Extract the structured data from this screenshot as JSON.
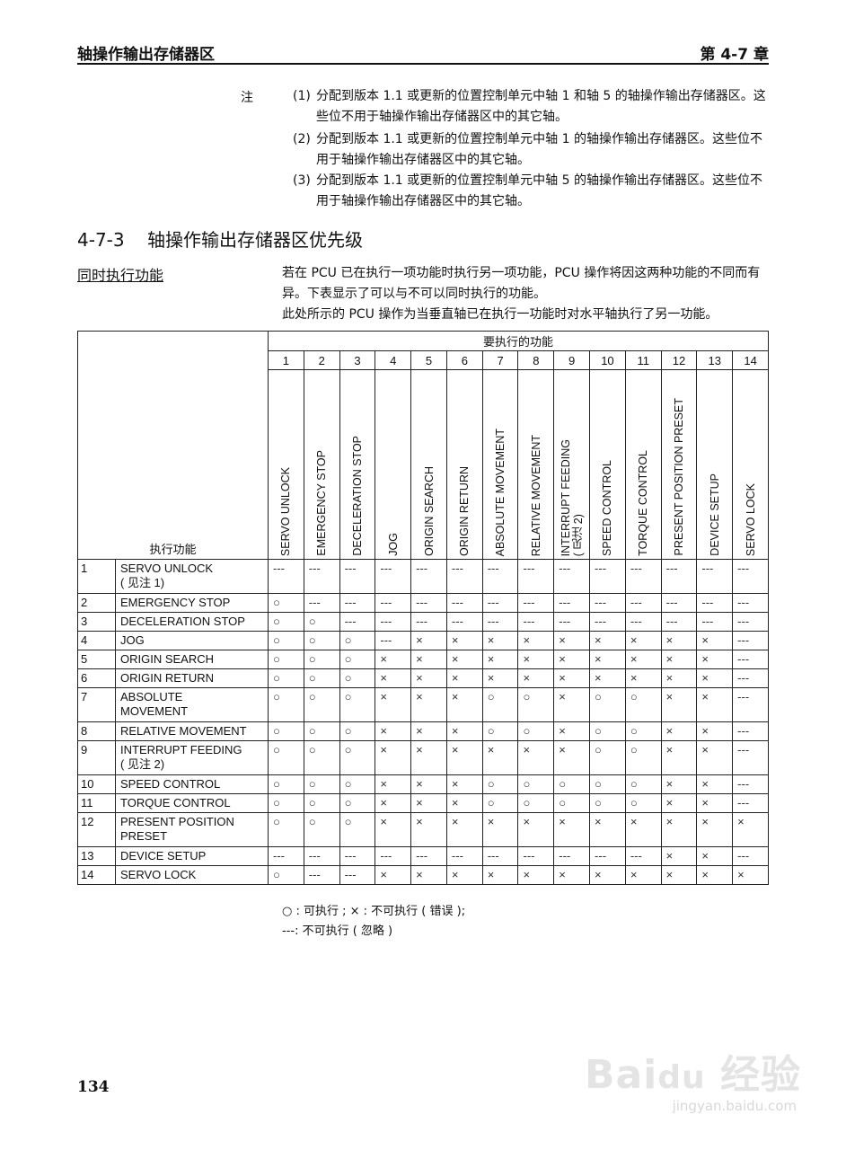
{
  "header": {
    "left": "轴操作输出存储器区",
    "right": "第 4-7 章"
  },
  "notes": {
    "label": "注",
    "items": [
      {
        "num": "(1)",
        "text": "分配到版本 1.1 或更新的位置控制单元中轴 1 和轴 5 的轴操作输出存储器区。这些位不用于轴操作输出存储器区中的其它轴。"
      },
      {
        "num": "(2)",
        "text": "分配到版本 1.1 或更新的位置控制单元中轴 1 的轴操作输出存储器区。这些位不用于轴操作输出存储器区中的其它轴。"
      },
      {
        "num": "(3)",
        "text": "分配到版本 1.1 或更新的位置控制单元中轴 5 的轴操作输出存储器区。这些位不用于轴操作输出存储器区中的其它轴。"
      }
    ]
  },
  "section": {
    "number": "4-7-3",
    "title": "轴操作输出存储器区优先级"
  },
  "subsection": {
    "title": "同时执行功能",
    "paragraphs": [
      "若在 PCU 已在执行一项功能时执行另一项功能，PCU 操作将因这两种功能的不同而有异。下表显示了可以与不可以同时执行的功能。",
      "此处所示的 PCU 操作为当垂直轴已在执行一功能时对水平轴执行了另一功能。"
    ]
  },
  "table": {
    "top_header": "要执行的功能",
    "corner_label": "执行功能",
    "columns": [
      {
        "num": "1",
        "label": "SERVO UNLOCK"
      },
      {
        "num": "2",
        "label": "EMERGENCY STOP"
      },
      {
        "num": "3",
        "label": "DECELERATION STOP"
      },
      {
        "num": "4",
        "label": "JOG"
      },
      {
        "num": "5",
        "label": "ORIGIN SEARCH"
      },
      {
        "num": "6",
        "label": "ORIGIN RETURN"
      },
      {
        "num": "7",
        "label": "ABSOLUTE MOVEMENT"
      },
      {
        "num": "8",
        "label": "RELATIVE MOVEMENT"
      },
      {
        "num": "9",
        "label": "INTERRUPT FEEDING\n( 见注 2)"
      },
      {
        "num": "10",
        "label": "SPEED CONTROL"
      },
      {
        "num": "11",
        "label": "TORQUE CONTROL"
      },
      {
        "num": "12",
        "label": "PRESENT POSITION PRESET"
      },
      {
        "num": "13",
        "label": "DEVICE SETUP"
      },
      {
        "num": "14",
        "label": "SERVO LOCK"
      }
    ],
    "rows": [
      {
        "num": "1",
        "name": "SERVO UNLOCK\n( 见注 1)",
        "cells": [
          "---",
          "---",
          "---",
          "---",
          "---",
          "---",
          "---",
          "---",
          "---",
          "---",
          "---",
          "---",
          "---",
          "---"
        ]
      },
      {
        "num": "2",
        "name": "EMERGENCY STOP",
        "cells": [
          "○",
          "---",
          "---",
          "---",
          "---",
          "---",
          "---",
          "---",
          "---",
          "---",
          "---",
          "---",
          "---",
          "---"
        ]
      },
      {
        "num": "3",
        "name": "DECELERATION STOP",
        "cells": [
          "○",
          "○",
          "---",
          "---",
          "---",
          "---",
          "---",
          "---",
          "---",
          "---",
          "---",
          "---",
          "---",
          "---"
        ]
      },
      {
        "num": "4",
        "name": "JOG",
        "cells": [
          "○",
          "○",
          "○",
          "---",
          "×",
          "×",
          "×",
          "×",
          "×",
          "×",
          "×",
          "×",
          "×",
          "---"
        ]
      },
      {
        "num": "5",
        "name": "ORIGIN SEARCH",
        "cells": [
          "○",
          "○",
          "○",
          "×",
          "×",
          "×",
          "×",
          "×",
          "×",
          "×",
          "×",
          "×",
          "×",
          "---"
        ]
      },
      {
        "num": "6",
        "name": "ORIGIN RETURN",
        "cells": [
          "○",
          "○",
          "○",
          "×",
          "×",
          "×",
          "×",
          "×",
          "×",
          "×",
          "×",
          "×",
          "×",
          "---"
        ]
      },
      {
        "num": "7",
        "name": "ABSOLUTE\nMOVEMENT",
        "cells": [
          "○",
          "○",
          "○",
          "×",
          "×",
          "×",
          "○",
          "○",
          "×",
          "○",
          "○",
          "×",
          "×",
          "---"
        ]
      },
      {
        "num": "8",
        "name": "RELATIVE MOVEMENT",
        "cells": [
          "○",
          "○",
          "○",
          "×",
          "×",
          "×",
          "○",
          "○",
          "×",
          "○",
          "○",
          "×",
          "×",
          "---"
        ]
      },
      {
        "num": "9",
        "name": "INTERRUPT FEEDING\n( 见注 2)",
        "cells": [
          "○",
          "○",
          "○",
          "×",
          "×",
          "×",
          "×",
          "×",
          "×",
          "○",
          "○",
          "×",
          "×",
          "---"
        ]
      },
      {
        "num": "10",
        "name": "SPEED CONTROL",
        "cells": [
          "○",
          "○",
          "○",
          "×",
          "×",
          "×",
          "○",
          "○",
          "○",
          "○",
          "○",
          "×",
          "×",
          "---"
        ]
      },
      {
        "num": "11",
        "name": "TORQUE CONTROL",
        "cells": [
          "○",
          "○",
          "○",
          "×",
          "×",
          "×",
          "○",
          "○",
          "○",
          "○",
          "○",
          "×",
          "×",
          "---"
        ]
      },
      {
        "num": "12",
        "name": "PRESENT POSITION\nPRESET",
        "cells": [
          "○",
          "○",
          "○",
          "×",
          "×",
          "×",
          "×",
          "×",
          "×",
          "×",
          "×",
          "×",
          "×",
          "×"
        ]
      },
      {
        "num": "13",
        "name": "DEVICE SETUP",
        "cells": [
          "---",
          "---",
          "---",
          "---",
          "---",
          "---",
          "---",
          "---",
          "---",
          "---",
          "---",
          "×",
          "×",
          "---"
        ]
      },
      {
        "num": "14",
        "name": "SERVO LOCK",
        "cells": [
          "○",
          "---",
          "---",
          "×",
          "×",
          "×",
          "×",
          "×",
          "×",
          "×",
          "×",
          "×",
          "×",
          "×"
        ]
      }
    ]
  },
  "legend": {
    "line1": "○ : 可执行 ; × : 不可执行 ( 错误 );",
    "line2": "---: 不可执行 ( 忽略 )"
  },
  "page_number": "134",
  "watermark": {
    "text": "Baidu 经验",
    "url_text": "jingyan.baidu.com"
  }
}
